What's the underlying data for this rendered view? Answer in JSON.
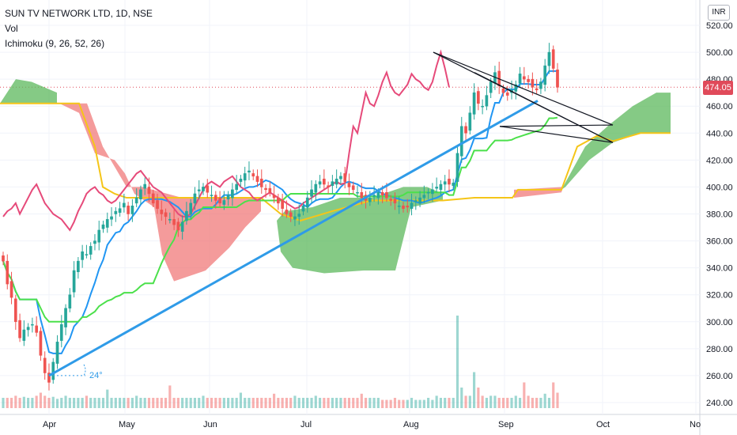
{
  "legend": {
    "symbol": "SUN TV NETWORK LTD, 1D, NSE",
    "vol": "Vol",
    "ichimoku": "Ichimoku (9, 26, 52, 26)"
  },
  "currency": "INR",
  "last_price": "474.05",
  "angle_label": "24°",
  "colors": {
    "up": "#26a69a",
    "down": "#ef5350",
    "tenkan": "#2196f3",
    "kijun": "#e64a7a",
    "chikou_green": "#4be04b",
    "cloud_up": "#5cb85c",
    "cloud_down": "#f07a7a",
    "senkou_b": "#f5c518",
    "trend": "#2f9be8",
    "price_line": "#e04a5a"
  },
  "chart_data": {
    "type": "candlestick",
    "title": "SUN TV NETWORK LTD, 1D, NSE",
    "ylim": [
      234,
      528
    ],
    "y_ticks": [
      240,
      260,
      280,
      300,
      320,
      340,
      360,
      380,
      400,
      420,
      440,
      460,
      480,
      500,
      520
    ],
    "x_ticks": [
      "Apr",
      "May",
      "Jun",
      "Jul",
      "Aug",
      "Sep",
      "Oct",
      "No"
    ],
    "last_price": 474.05,
    "closes": [
      345,
      328,
      318,
      300,
      288,
      294,
      296,
      298,
      292,
      275,
      262,
      255,
      270,
      285,
      298,
      310,
      320,
      338,
      345,
      352,
      350,
      356,
      360,
      368,
      372,
      376,
      378,
      382,
      384,
      388,
      380,
      386,
      392,
      398,
      402,
      395,
      388,
      384,
      380,
      378,
      376,
      372,
      368,
      374,
      382,
      388,
      395,
      398,
      400,
      396,
      394,
      390,
      388,
      390,
      394,
      398,
      402,
      406,
      410,
      412,
      408,
      404,
      400,
      398,
      396,
      392,
      388,
      384,
      380,
      378,
      378,
      380,
      386,
      392,
      398,
      402,
      404,
      402,
      400,
      404,
      406,
      408,
      404,
      400,
      398,
      396,
      392,
      390,
      392,
      394,
      396,
      394,
      392,
      390,
      388,
      386,
      384,
      385,
      388,
      390,
      392,
      394,
      396,
      398,
      400,
      402,
      404,
      402,
      403,
      425,
      445,
      440,
      455,
      470,
      462,
      460,
      468,
      478,
      485,
      475,
      470,
      468,
      472,
      476,
      484,
      480,
      478,
      474,
      472,
      478,
      490,
      500,
      488,
      474
    ],
    "volume_relative": [
      0.1,
      0.1,
      0.1,
      0.12,
      0.1,
      0.11,
      0.1,
      0.1,
      0.12,
      0.15,
      0.12,
      0.1,
      0.11,
      0.09,
      0.1,
      0.12,
      0.1,
      0.1,
      0.1,
      0.1,
      0.12,
      0.1,
      0.1,
      0.1,
      0.1,
      0.18,
      0.1,
      0.1,
      0.1,
      0.1,
      0.1,
      0.1,
      0.12,
      0.1,
      0.1,
      0.1,
      0.1,
      0.1,
      0.1,
      0.1,
      0.22,
      0.1,
      0.1,
      0.1,
      0.1,
      0.1,
      0.1,
      0.1,
      0.12,
      0.1,
      0.1,
      0.1,
      0.1,
      0.1,
      0.1,
      0.1,
      0.1,
      0.15,
      0.1,
      0.1,
      0.1,
      0.1,
      0.1,
      0.1,
      0.1,
      0.14,
      0.1,
      0.1,
      0.1,
      0.1,
      0.12,
      0.1,
      0.1,
      0.1,
      0.1,
      0.12,
      0.1,
      0.1,
      0.1,
      0.1,
      0.1,
      0.1,
      0.1,
      0.1,
      0.1,
      0.1,
      0.14,
      0.1,
      0.1,
      0.1,
      0.1,
      0.08,
      0.08,
      0.08,
      0.1,
      0.08,
      0.08,
      0.08,
      0.1,
      0.08,
      0.08,
      0.08,
      0.1,
      0.08,
      0.12,
      0.1,
      0.1,
      0.1,
      0.1,
      0.9,
      0.2,
      0.12,
      0.12,
      0.35,
      0.2,
      0.12,
      0.1,
      0.12,
      0.12,
      0.1,
      0.1,
      0.1,
      0.1,
      0.12,
      0.1,
      0.25,
      0.12,
      0.1,
      0.1,
      0.1,
      0.14,
      0.1,
      0.25,
      0.15
    ]
  }
}
